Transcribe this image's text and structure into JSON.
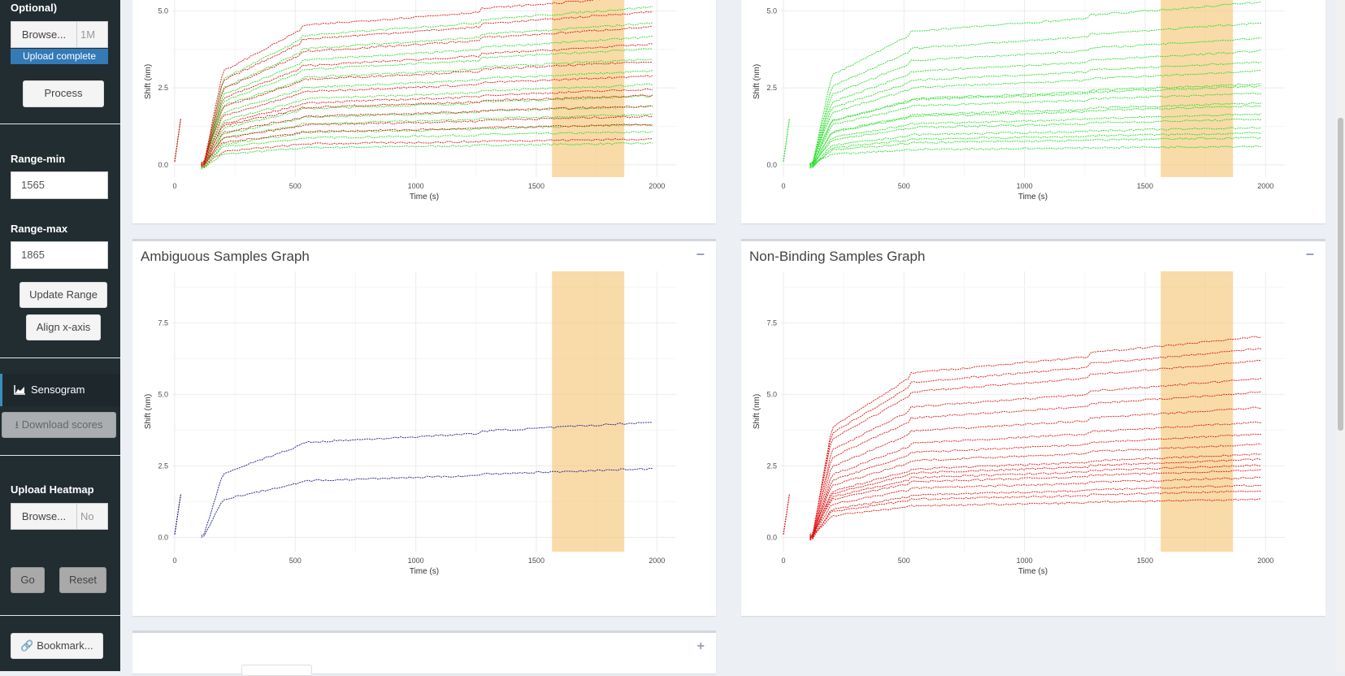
{
  "sidebar": {
    "top_label": "Optional)",
    "upload1": {
      "browse_label": "Browse...",
      "file_text": "1M"
    },
    "upload_status": "Upload complete",
    "process_label": "Process",
    "range_min_label": "Range-min",
    "range_min_value": "1565",
    "range_max_label": "Range-max",
    "range_max_value": "1865",
    "update_range_label": "Update Range",
    "align_label": "Align x-axis",
    "menu_sensogram": "Sensogram",
    "download_label": "Download scores",
    "upload_heatmap_label": "Upload Heatmap",
    "upload2": {
      "browse_label": "Browse...",
      "file_text": "No"
    },
    "go_label": "Go",
    "reset_label": "Reset",
    "bookmark_label": "Bookmark..."
  },
  "panels": {
    "ambiguous_title": "Ambiguous Samples Graph",
    "nonbinding_title": "Non-Binding Samples Graph",
    "collapse_symbol": "−",
    "expand_symbol": "+"
  },
  "colors": {
    "binding": "#22dd22",
    "nonbinding": "#dd1111",
    "ambiguous": "#1a1a8c",
    "range_highlight": "#f5c77a",
    "sidebar_bg": "#222d32",
    "accent": "#3c8dbc"
  },
  "chart_data": [
    {
      "type": "scatter",
      "panel": "top-left (title off-screen)",
      "xlabel": "Time (s)",
      "ylabel": "Shift (nm)",
      "xticks": [
        0,
        500,
        1000,
        1500,
        2000
      ],
      "yticks": [
        "0.0",
        "2.5",
        "5.0"
      ],
      "xlim": [
        -10,
        2080
      ],
      "ylim": [
        -0.4,
        5.8
      ],
      "highlight_range": [
        1565,
        1865
      ],
      "series": [
        {
          "color": "green",
          "levels": [
            0.8,
            1.1,
            1.4,
            1.7,
            2.0,
            2.3,
            2.6,
            3.0,
            3.4,
            3.8,
            4.2,
            4.7,
            5.2
          ]
        },
        {
          "color": "red",
          "levels": [
            0.9,
            1.3,
            1.6,
            1.9,
            2.2,
            2.5,
            2.9,
            3.3,
            3.9,
            4.5,
            5.0,
            5.5
          ]
        }
      ]
    },
    {
      "type": "scatter",
      "panel": "top-right (title off-screen)",
      "xlabel": "Time (s)",
      "ylabel": "Shift (nm)",
      "xticks": [
        0,
        500,
        1000,
        1500,
        2000
      ],
      "yticks": [
        "0.0",
        "2.5",
        "5.0"
      ],
      "xlim": [
        -10,
        2080
      ],
      "ylim": [
        -0.4,
        5.8
      ],
      "highlight_range": [
        1565,
        1865
      ],
      "series": [
        {
          "color": "green",
          "levels": [
            0.6,
            0.9,
            1.1,
            1.3,
            1.5,
            1.7,
            1.9,
            2.1,
            2.3,
            2.5,
            2.7,
            3.0,
            3.3,
            3.7,
            4.1,
            4.6,
            5.3
          ]
        }
      ]
    },
    {
      "type": "scatter",
      "panel": "Ambiguous Samples Graph",
      "xlabel": "Time (s)",
      "ylabel": "Shift (nm)",
      "xticks": [
        0,
        500,
        1000,
        1500,
        2000
      ],
      "yticks": [
        "0.0",
        "2.5",
        "5.0",
        "7.5"
      ],
      "xlim": [
        -10,
        2080
      ],
      "ylim": [
        -0.5,
        9.3
      ],
      "highlight_range": [
        1565,
        1865
      ],
      "series": [
        {
          "color": "blue",
          "levels": [
            2.4,
            4.0
          ]
        }
      ]
    },
    {
      "type": "scatter",
      "panel": "Non-Binding Samples Graph",
      "xlabel": "Time (s)",
      "ylabel": "Shift (nm)",
      "xticks": [
        0,
        500,
        1000,
        1500,
        2000
      ],
      "yticks": [
        "0.0",
        "2.5",
        "5.0",
        "7.5"
      ],
      "xlim": [
        -10,
        2080
      ],
      "ylim": [
        -0.5,
        9.3
      ],
      "highlight_range": [
        1565,
        1865
      ],
      "series": [
        {
          "color": "red",
          "levels": [
            1.3,
            1.6,
            1.9,
            2.1,
            2.3,
            2.5,
            2.7,
            2.9,
            3.2,
            3.6,
            4.1,
            4.6,
            5.1,
            5.6,
            6.1,
            6.6,
            7.1
          ]
        }
      ]
    }
  ]
}
